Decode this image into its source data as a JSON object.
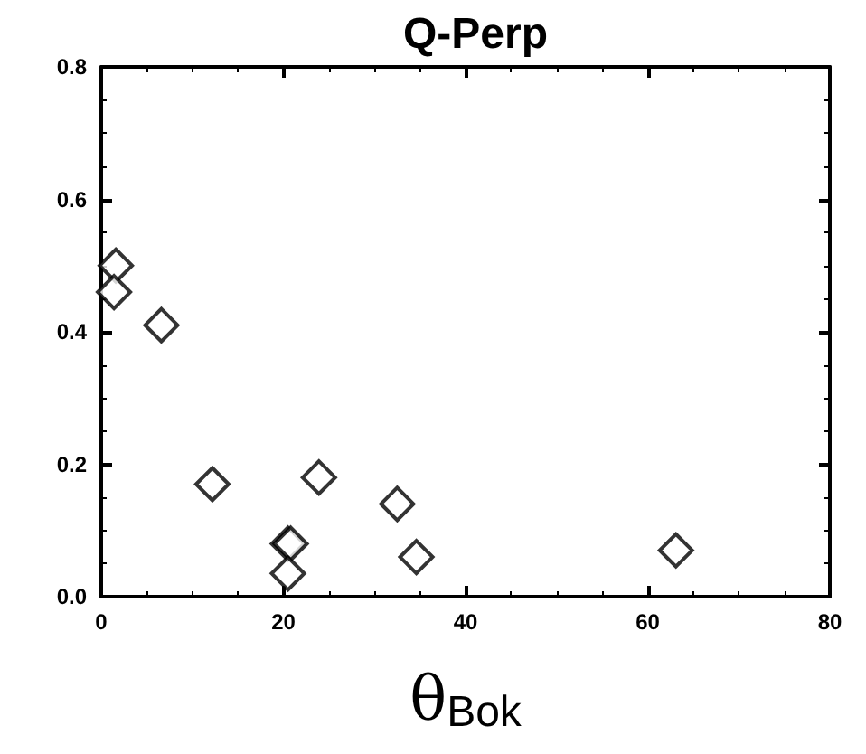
{
  "chart_data": {
    "type": "scatter",
    "title": "Q-Perp",
    "xlabel": "θ$_{Bok}$",
    "x": [
      1.6,
      1.4,
      6.6,
      12.2,
      23.9,
      20.5,
      20.8,
      20.5,
      32.5,
      34.6,
      63.1
    ],
    "values": [
      0.5,
      0.46,
      0.41,
      0.17,
      0.18,
      0.08,
      0.08,
      0.035,
      0.14,
      0.06,
      0.07
    ],
    "color": "#000000",
    "marker": "diamond",
    "grid": false,
    "xlim": [
      0,
      80
    ],
    "xticks": [
      0,
      20,
      40,
      60,
      80
    ],
    "ylim": [
      0,
      0.8
    ],
    "yticks": [
      {
        "value": 0,
        "label": "0.0"
      },
      0.2,
      0.4,
      0.6,
      0.8
    ]
  }
}
